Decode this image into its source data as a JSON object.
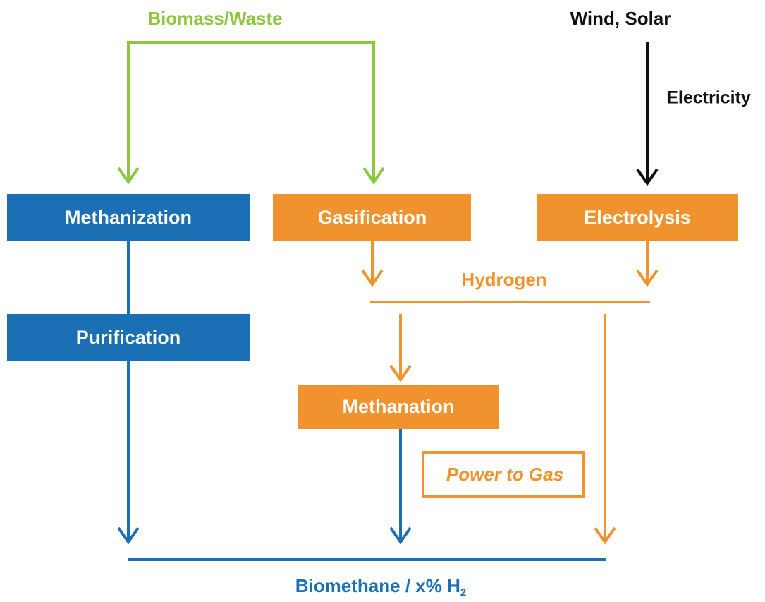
{
  "inputs": {
    "biomass": "Biomass/Waste",
    "renewables": "Wind, Solar",
    "electricity": "Electricity"
  },
  "nodes": [
    {
      "label": "Methanization"
    },
    {
      "label": "Gasification"
    },
    {
      "label": "Electrolysis"
    },
    {
      "label": "Purification"
    },
    {
      "label": "Methanation"
    }
  ],
  "hydrogen": "Hydrogen",
  "power_to_gas": "Power to Gas",
  "output": {
    "label": "Biomethane / x% H",
    "subscript": "2"
  }
}
